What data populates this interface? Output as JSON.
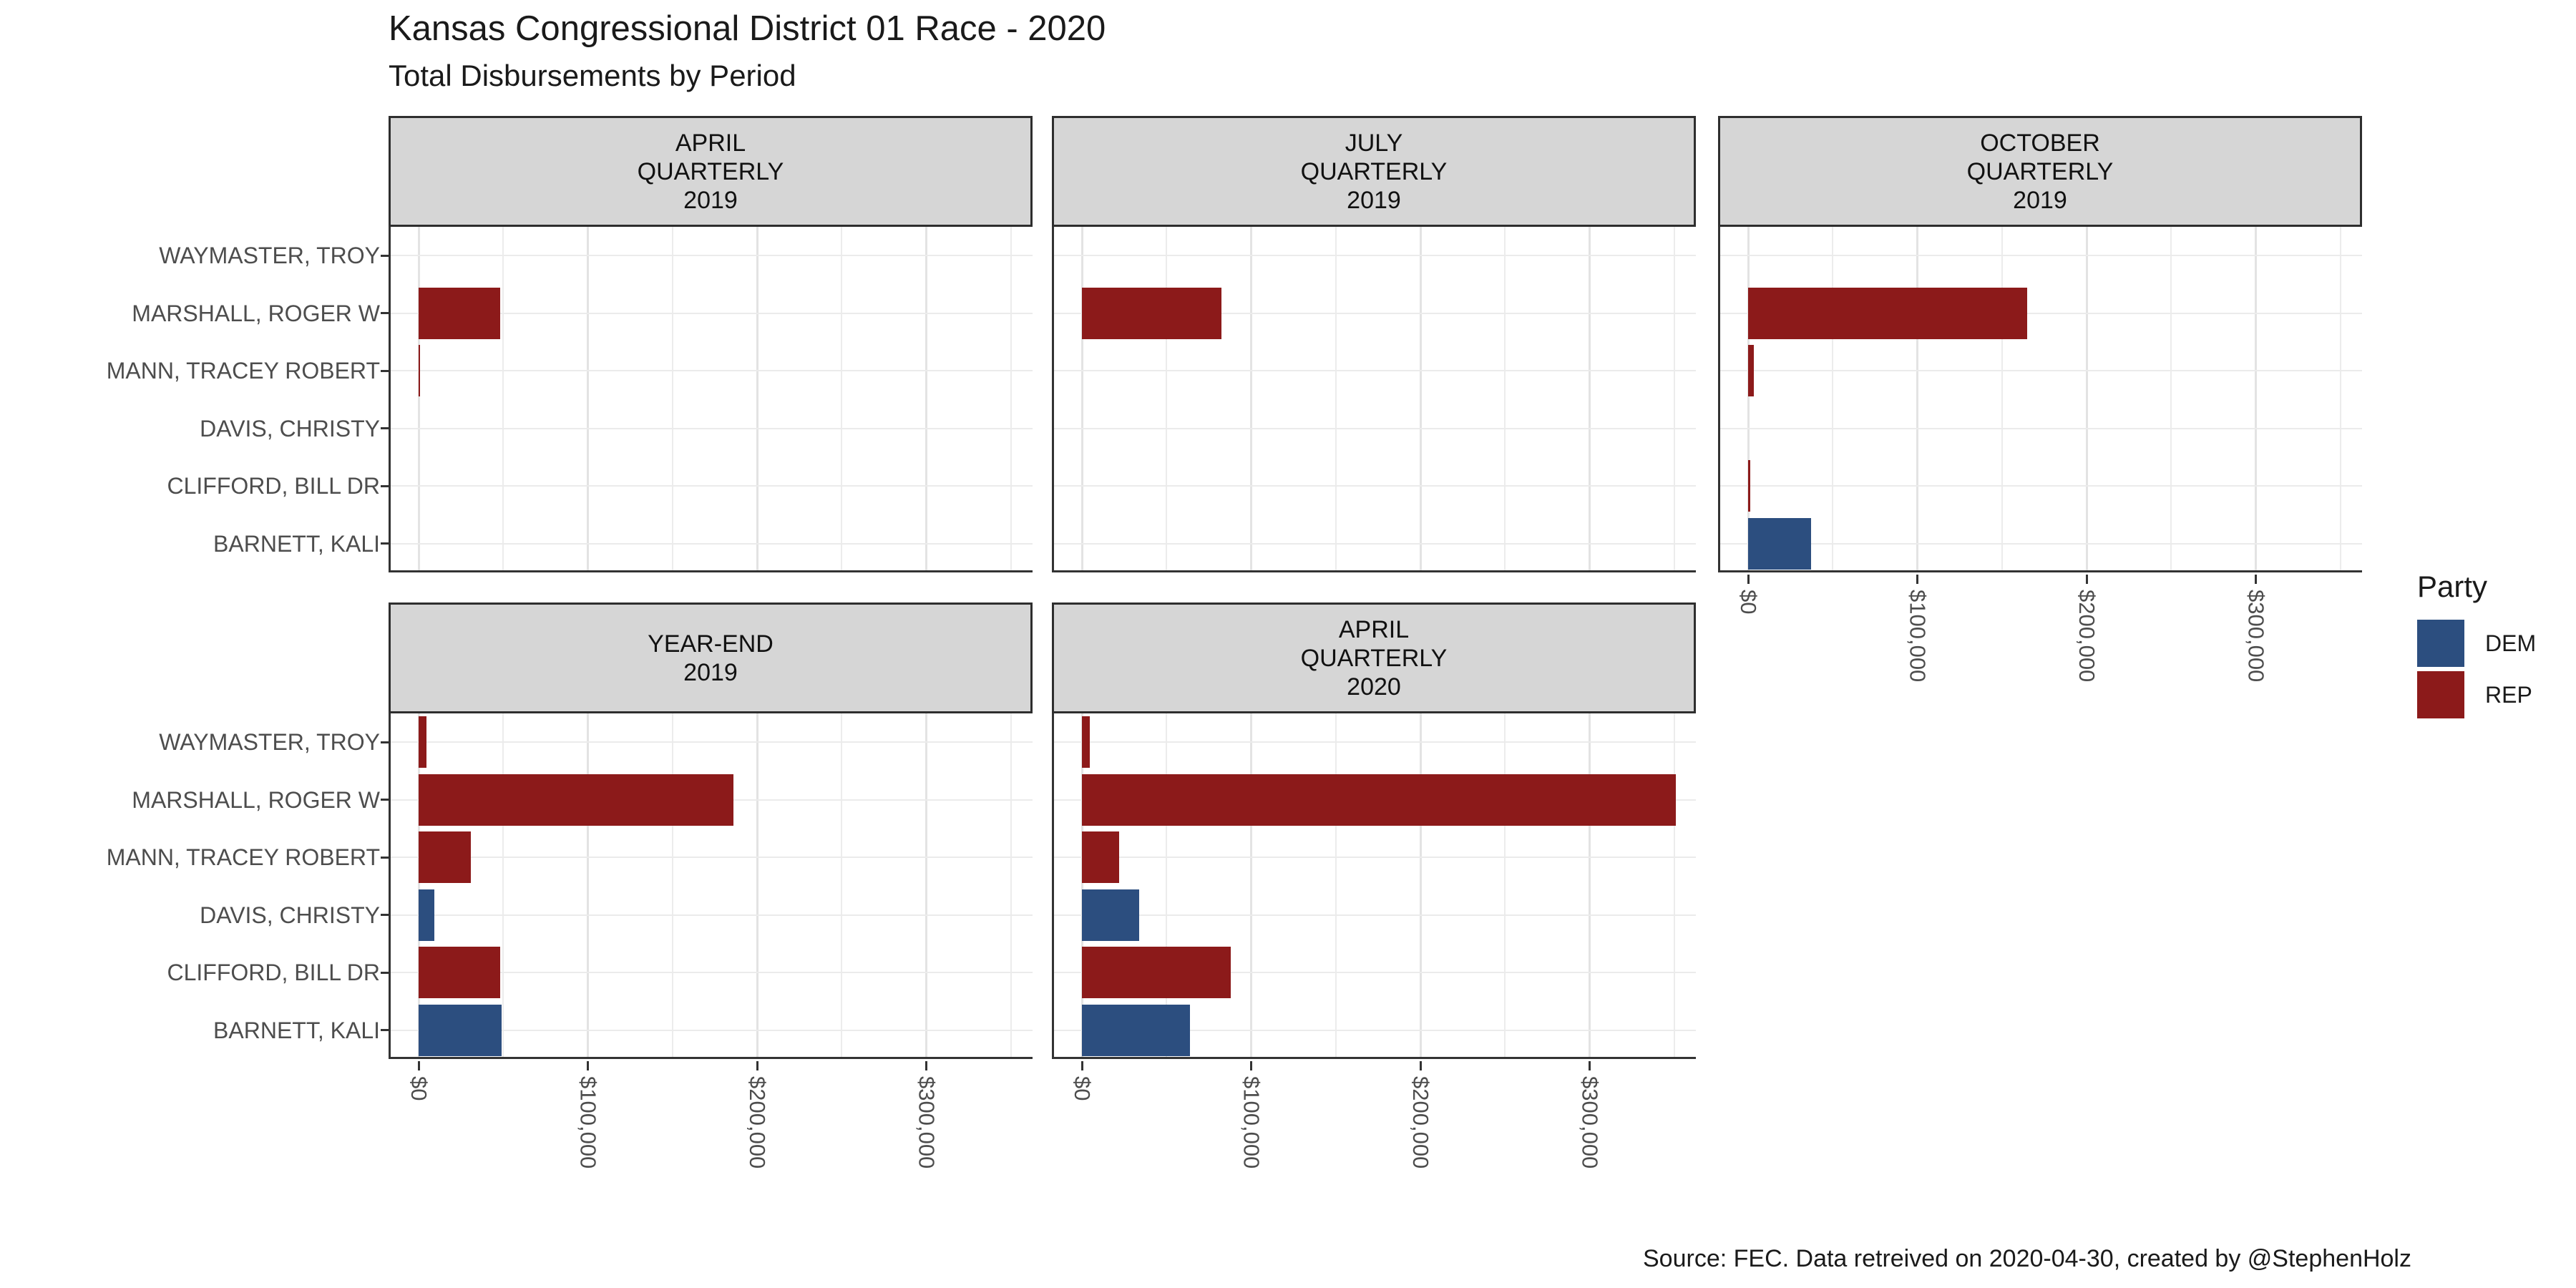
{
  "title": "Kansas Congressional District 01 Race - 2020",
  "subtitle": "Total Disbursements by Period",
  "caption": "Source: FEC. Data retreived on 2020-04-30, created by @StephenHolz",
  "legend": {
    "title": "Party",
    "entries": [
      {
        "label": "DEM",
        "color": "#2c4e7f"
      },
      {
        "label": "REP",
        "color": "#8c1a1a"
      }
    ]
  },
  "chart_data": {
    "type": "bar",
    "orientation": "horizontal",
    "title": "Kansas Congressional District 01 Race - 2020",
    "subtitle": "Total Disbursements by Period",
    "xlabel": "",
    "ylabel": "",
    "grid": true,
    "legend_position": "right",
    "categories": [
      "WAYMASTER, TROY",
      "MARSHALL, ROGER W",
      "MANN, TRACEY ROBERT",
      "DAVIS, CHRISTY",
      "CLIFFORD, BILL DR",
      "BARNETT, KALI"
    ],
    "category_party": [
      "REP",
      "REP",
      "REP",
      "DEM",
      "REP",
      "DEM"
    ],
    "party_colors": {
      "DEM": "#2c4e7f",
      "REP": "#8c1a1a"
    },
    "x_ticks": [
      {
        "label": "$0",
        "value": 0
      },
      {
        "label": "$100,000",
        "value": 100000
      },
      {
        "label": "$200,000",
        "value": 200000
      },
      {
        "label": "$300,000",
        "value": 300000
      }
    ],
    "xlim": [
      0,
      363000
    ],
    "grid_minor_step": 50000,
    "facets": [
      {
        "strip_lines": [
          "APRIL",
          "QUARTERLY",
          "2019"
        ],
        "show_x_axis": false,
        "values": [
          0,
          48000,
          600,
          0,
          0,
          0
        ]
      },
      {
        "strip_lines": [
          "JULY",
          "QUARTERLY",
          "2019"
        ],
        "show_x_axis": false,
        "values": [
          0,
          82500,
          0,
          0,
          0,
          0
        ]
      },
      {
        "strip_lines": [
          "OCTOBER",
          "QUARTERLY",
          "2019"
        ],
        "show_x_axis": true,
        "values": [
          0,
          165000,
          3500,
          0,
          1200,
          37000
        ]
      },
      {
        "strip_lines": [
          "YEAR-END",
          "2019"
        ],
        "show_x_axis": true,
        "values": [
          4500,
          186000,
          31000,
          9500,
          48000,
          49000
        ]
      },
      {
        "strip_lines": [
          "APRIL",
          "QUARTERLY",
          "2020"
        ],
        "show_x_axis": true,
        "values": [
          4500,
          351000,
          22000,
          34000,
          88000,
          64000
        ]
      }
    ]
  }
}
